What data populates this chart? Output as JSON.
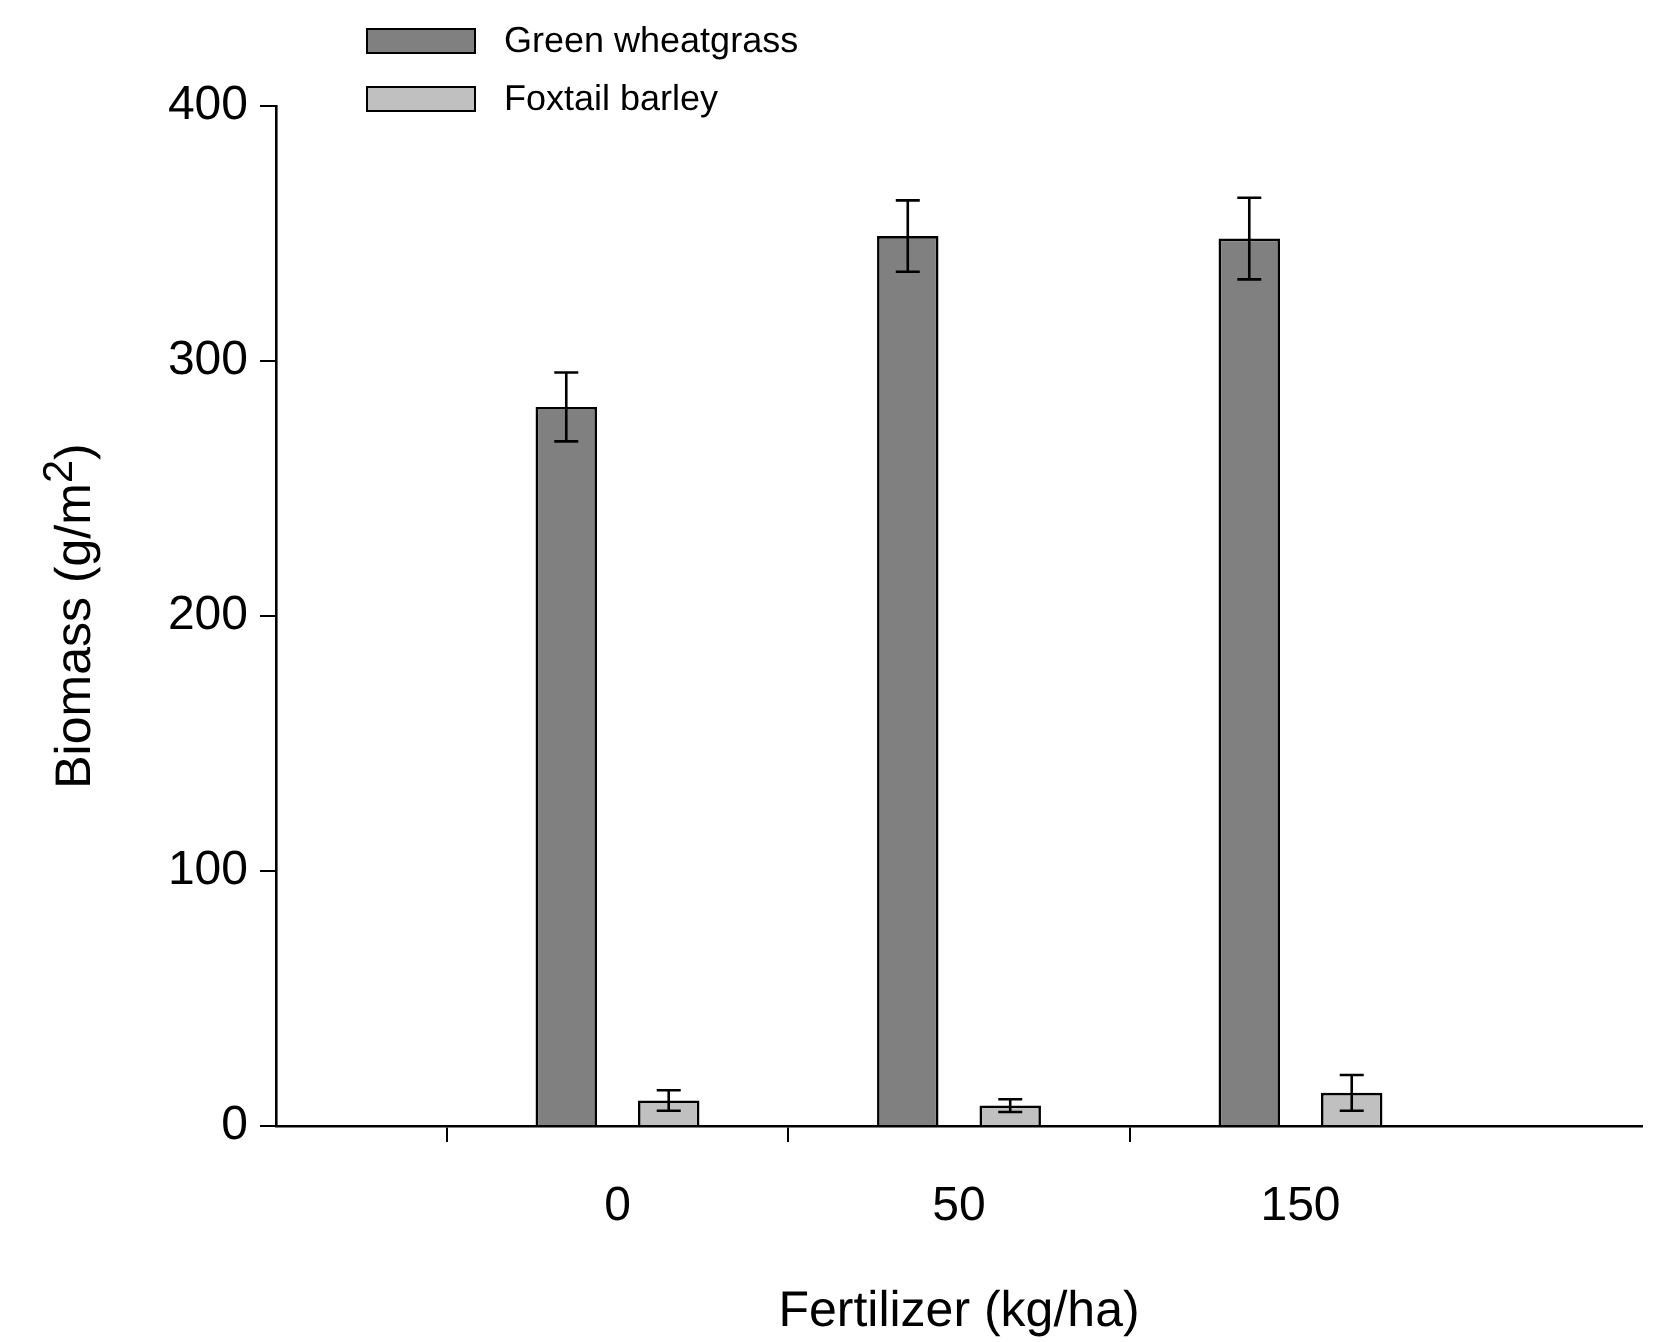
{
  "chart_data": {
    "type": "bar",
    "xlabel": "Fertilizer (kg/ha)",
    "ylabel": "Biomass (g/m$^{2}$)",
    "categories": [
      null,
      "0",
      "50",
      "150",
      null
    ],
    "series": [
      {
        "name": "Green wheatgrass",
        "color": "#808080",
        "values": [
          null,
          282,
          349,
          348,
          null
        ],
        "errors": [
          null,
          13.5,
          14,
          16,
          null
        ]
      },
      {
        "name": "Foxtail barley",
        "color": "#c0c0c0",
        "values": [
          null,
          10,
          8,
          13,
          null
        ],
        "errors": [
          null,
          4,
          2.5,
          7,
          null
        ]
      }
    ],
    "ylim": [
      0,
      400
    ],
    "yticks": [
      0,
      100,
      200,
      300,
      400
    ],
    "grid": false,
    "legend": "top left"
  }
}
